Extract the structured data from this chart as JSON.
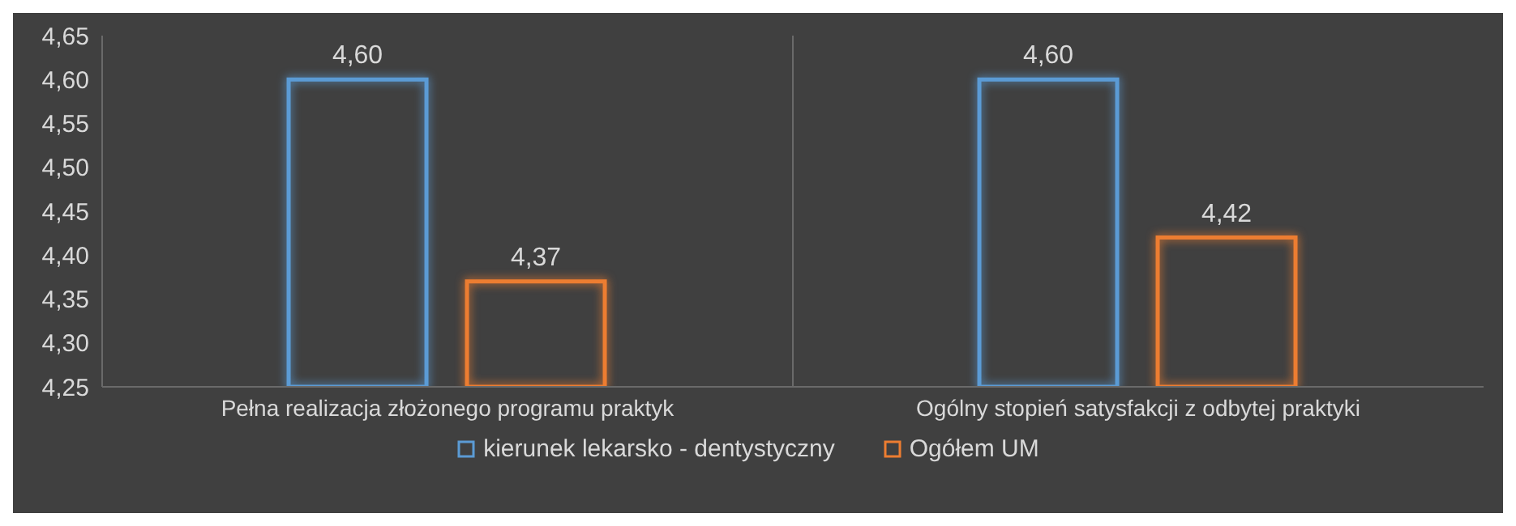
{
  "chart_data": {
    "type": "bar",
    "categories": [
      "Pełna realizacja złożonego programu praktyk",
      "Ogólny stopień satysfakcji z odbytej praktyki"
    ],
    "series": [
      {
        "name": "kierunek lekarsko - dentystyczny",
        "color": "#5b9bd5",
        "values": [
          4.6,
          4.6
        ],
        "value_labels": [
          "4,60",
          "4,60"
        ]
      },
      {
        "name": "Ogółem UM",
        "color": "#ed7d31",
        "values": [
          4.37,
          4.42
        ],
        "value_labels": [
          "4,37",
          "4,42"
        ]
      }
    ],
    "ylim": [
      4.25,
      4.65
    ],
    "yticks": [
      {
        "value": 4.25,
        "label": "4,25"
      },
      {
        "value": 4.3,
        "label": "4,30"
      },
      {
        "value": 4.35,
        "label": "4,35"
      },
      {
        "value": 4.4,
        "label": "4,40"
      },
      {
        "value": 4.45,
        "label": "4,45"
      },
      {
        "value": 4.5,
        "label": "4,50"
      },
      {
        "value": 4.55,
        "label": "4,55"
      },
      {
        "value": 4.6,
        "label": "4,60"
      },
      {
        "value": 4.65,
        "label": "4,65"
      }
    ],
    "grid": "x",
    "legend": "bottom"
  }
}
